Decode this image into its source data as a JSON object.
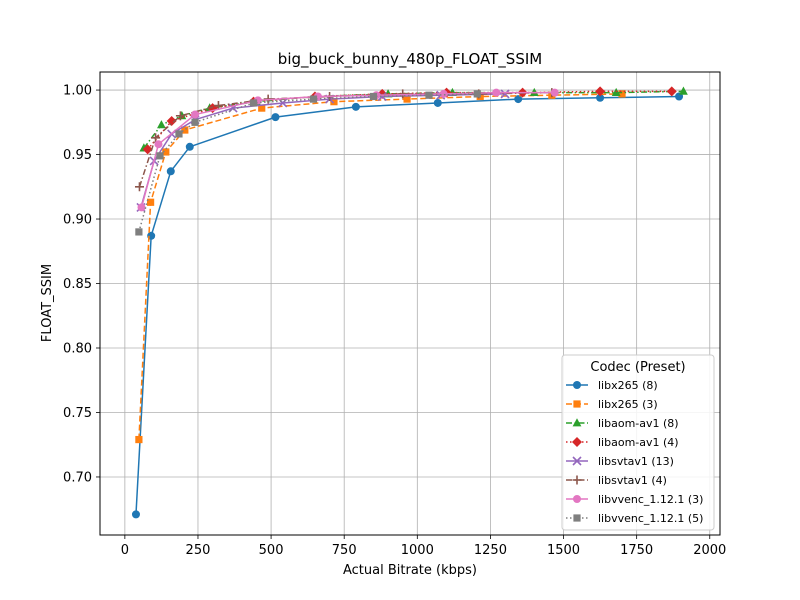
{
  "chart_data": {
    "type": "line",
    "title": "big_buck_bunny_480p_FLOAT_SSIM",
    "xlabel": "Actual Bitrate (kbps)",
    "ylabel": "FLOAT_SSIM",
    "xlim": [
      -85,
      2035
    ],
    "ylim": [
      0.655,
      1.014
    ],
    "xticks": [
      0,
      250,
      500,
      750,
      1000,
      1250,
      1500,
      1750,
      2000
    ],
    "xtick_labels": [
      "0",
      "250",
      "500",
      "750",
      "1000",
      "1250",
      "1500",
      "1750",
      "2000"
    ],
    "yticks": [
      0.7,
      0.75,
      0.8,
      0.85,
      0.9,
      0.95,
      1.0
    ],
    "ytick_labels": [
      "0.70",
      "0.75",
      "0.80",
      "0.85",
      "0.90",
      "0.95",
      "1.00"
    ],
    "grid": true,
    "legend_title": "Codec (Preset)",
    "legend_position": "lower-right",
    "series": [
      {
        "name": "libx265 (8)",
        "color": "#1f77b4",
        "marker": "circle",
        "dash": "solid",
        "x": [
          38,
          90,
          157,
          222,
          515,
          790,
          1070,
          1345,
          1625,
          1895
        ],
        "y": [
          0.671,
          0.887,
          0.937,
          0.956,
          0.979,
          0.987,
          0.99,
          0.993,
          0.994,
          0.995
        ]
      },
      {
        "name": "libx265 (3)",
        "color": "#ff7f0e",
        "marker": "square",
        "dash": "dashed",
        "x": [
          48,
          88,
          140,
          205,
          468,
          715,
          965,
          1215,
          1460,
          1700
        ],
        "y": [
          0.729,
          0.913,
          0.952,
          0.969,
          0.986,
          0.991,
          0.993,
          0.995,
          0.996,
          0.997
        ]
      },
      {
        "name": "libaom-av1 (8)",
        "color": "#2ca02c",
        "marker": "triangle",
        "dash": "dashdot",
        "x": [
          65,
          125,
          195,
          290,
          450,
          650,
          900,
          1120,
          1400,
          1680,
          1910
        ],
        "y": [
          0.955,
          0.973,
          0.98,
          0.986,
          0.991,
          0.995,
          0.997,
          0.998,
          0.998,
          0.998,
          0.999
        ]
      },
      {
        "name": "libaom-av1 (4)",
        "color": "#d62728",
        "marker": "diamond",
        "dash": "dotted",
        "x": [
          78,
          160,
          300,
          440,
          650,
          880,
          1100,
          1360,
          1625,
          1870
        ],
        "y": [
          0.954,
          0.976,
          0.986,
          0.991,
          0.995,
          0.997,
          0.998,
          0.998,
          0.999,
          0.999
        ]
      },
      {
        "name": "libsvtav1 (13)",
        "color": "#9467bd",
        "marker": "x",
        "dash": "solid",
        "x": [
          55,
          100,
          160,
          240,
          370,
          540,
          700,
          880,
          1080,
          1300
        ],
        "y": [
          0.909,
          0.945,
          0.966,
          0.977,
          0.986,
          0.99,
          0.993,
          0.995,
          0.996,
          0.997
        ]
      },
      {
        "name": "libsvtav1 (4)",
        "color": "#8c564b",
        "marker": "plus",
        "dash": "dashdot",
        "x": [
          50,
          105,
          190,
          320,
          490,
          700,
          950,
          1210,
          1460
        ],
        "y": [
          0.925,
          0.963,
          0.98,
          0.988,
          0.993,
          0.995,
          0.997,
          0.997,
          0.998
        ]
      },
      {
        "name": "libvvenc_1.12.1 (3)",
        "color": "#e377c2",
        "marker": "circle",
        "dash": "solid",
        "x": [
          57,
          115,
          240,
          455,
          660,
          860,
          1090,
          1270,
          1470
        ],
        "y": [
          0.909,
          0.958,
          0.981,
          0.992,
          0.995,
          0.996,
          0.997,
          0.998,
          0.998
        ]
      },
      {
        "name": "libvvenc_1.12.1 (5)",
        "color": "#7f7f7f",
        "marker": "square",
        "dash": "dotted",
        "x": [
          48,
          120,
          185,
          240,
          440,
          645,
          850,
          1040,
          1205
        ],
        "y": [
          0.89,
          0.949,
          0.966,
          0.975,
          0.99,
          0.993,
          0.995,
          0.996,
          0.997
        ]
      }
    ]
  }
}
